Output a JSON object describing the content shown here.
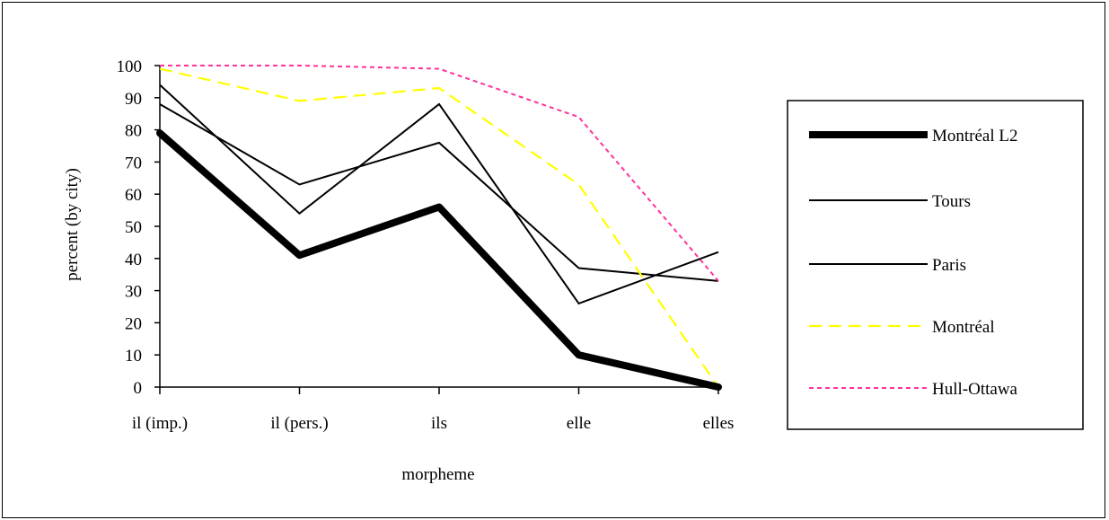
{
  "chart_data": {
    "type": "line",
    "title": "",
    "xlabel": "morpheme",
    "ylabel": "percent (by city)",
    "categories": [
      "il (imp.)",
      "il (pers.)",
      "ils",
      "elle",
      "elles"
    ],
    "ylim": [
      0,
      100
    ],
    "yticks": [
      0,
      10,
      20,
      30,
      40,
      50,
      60,
      70,
      80,
      90,
      100
    ],
    "grid": false,
    "legend_position": "right",
    "series": [
      {
        "name": "Montréal L2",
        "values": [
          79,
          41,
          56,
          10,
          0
        ],
        "color": "#000000",
        "style": "thick"
      },
      {
        "name": "Tours",
        "values": [
          88,
          63,
          76,
          37,
          33
        ],
        "color": "#000000",
        "style": "solid"
      },
      {
        "name": "Paris",
        "values": [
          94,
          54,
          88,
          26,
          42
        ],
        "color": "#000000",
        "style": "solid"
      },
      {
        "name": "Montréal",
        "values": [
          99,
          89,
          93,
          63,
          0
        ],
        "color": "#ffff00",
        "style": "dashed"
      },
      {
        "name": "Hull-Ottawa",
        "values": [
          100,
          100,
          99,
          84,
          33
        ],
        "color": "#ff3399",
        "style": "dotted"
      }
    ]
  }
}
